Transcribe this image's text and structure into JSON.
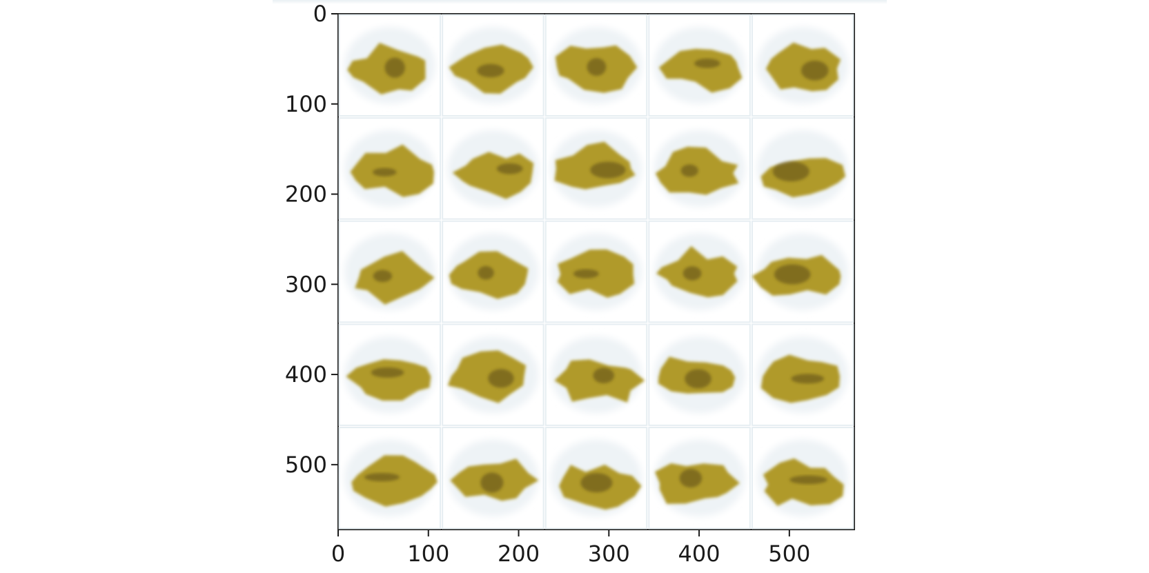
{
  "image": {
    "description_kind": "grid of generated sample images",
    "grid_rows": 5,
    "grid_cols": 5,
    "tile_size_px": 112,
    "x_ticks": [
      "0",
      "100",
      "200",
      "300",
      "400",
      "500"
    ],
    "y_ticks": [
      "0",
      "100",
      "200",
      "300",
      "400",
      "500"
    ],
    "xlim": [
      0,
      572
    ],
    "ylim": [
      0,
      572
    ],
    "blob_color": "#b09a2c",
    "blob_shadow_color": "#5a4a14",
    "tile_background": "#ffffff",
    "tile_border_color": "#e6eef2"
  }
}
